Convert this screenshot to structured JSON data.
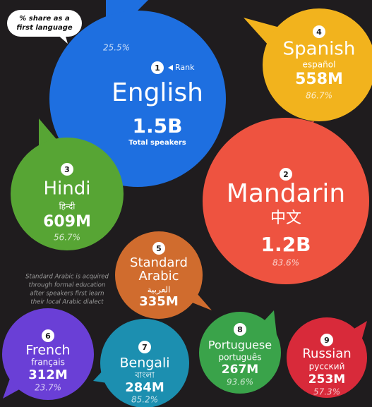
{
  "legend": {
    "share_label": [
      "% share as a",
      "first language"
    ],
    "rank_label": "Rank",
    "total_label": "Total speakers"
  },
  "note": [
    "Standard Arabic is acquired",
    "through formal education",
    "after speakers first learn",
    "their local Arabic dialect"
  ],
  "languages": [
    {
      "rank": "1",
      "name": [
        "English"
      ],
      "total": "1.5B",
      "share": "25.5%"
    },
    {
      "rank": "4",
      "name": [
        "Spanish"
      ],
      "native": "español",
      "total": "558M",
      "share": "86.7%"
    },
    {
      "rank": "2",
      "name": [
        "Mandarin"
      ],
      "native": "中文",
      "total": "1.2B",
      "share": "83.6%"
    },
    {
      "rank": "3",
      "name": [
        "Hindi"
      ],
      "native": "हिन्दी",
      "total": "609M",
      "share": "56.7%"
    },
    {
      "rank": "5",
      "name": [
        "Standard",
        "Arabic"
      ],
      "native": "العربية",
      "total": "335M"
    },
    {
      "rank": "6",
      "name": [
        "French"
      ],
      "native": "français",
      "total": "312M",
      "share": "23.7%"
    },
    {
      "rank": "7",
      "name": [
        "Bengali"
      ],
      "native": "বাংলা",
      "total": "284M",
      "share": "85.2%"
    },
    {
      "rank": "8",
      "name": [
        "Portuguese"
      ],
      "native": "português",
      "total": "267M",
      "share": "93.6%"
    },
    {
      "rank": "9",
      "name": [
        "Russian"
      ],
      "native": "русский",
      "total": "253M",
      "share": "57.3%"
    }
  ]
}
